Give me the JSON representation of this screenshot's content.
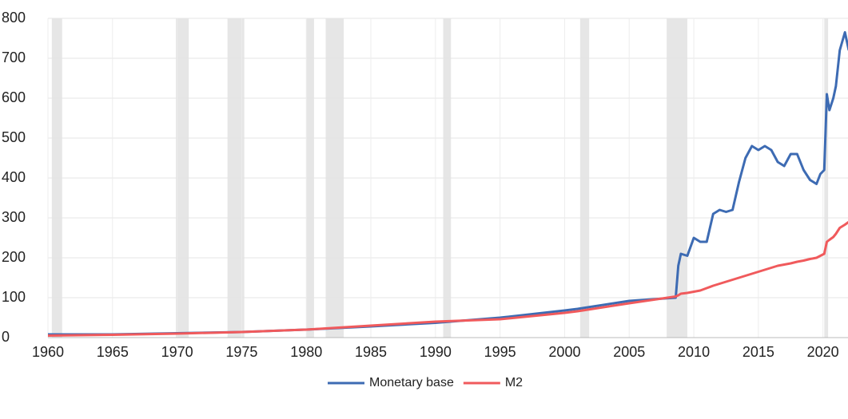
{
  "chart_data": {
    "type": "line",
    "x": [
      1960,
      1965,
      1970,
      1975,
      1980,
      1985,
      1990,
      1995,
      2000,
      2001,
      2005,
      2008.6,
      2008.8,
      2009,
      2009.5,
      2010,
      2010.5,
      2011,
      2011.5,
      2012,
      2012.5,
      2013,
      2013.5,
      2014,
      2014.5,
      2015,
      2015.5,
      2016,
      2016.5,
      2017,
      2017.5,
      2018,
      2018.5,
      2019,
      2019.5,
      2019.8,
      2020.1,
      2020.3,
      2020.5,
      2020.8,
      2021,
      2021.3,
      2021.7,
      2022
    ],
    "series": [
      {
        "name": "Monetary base",
        "color": "#3d6bb3",
        "values": [
          8,
          8,
          11,
          14,
          20,
          28,
          37,
          50,
          68,
          72,
          92,
          100,
          180,
          210,
          205,
          250,
          240,
          240,
          310,
          320,
          315,
          320,
          390,
          450,
          480,
          470,
          480,
          470,
          440,
          430,
          460,
          460,
          420,
          395,
          385,
          410,
          420,
          610,
          570,
          600,
          630,
          720,
          765,
          720
        ]
      },
      {
        "name": "M2",
        "color": "#f05a5c",
        "values": [
          5,
          7,
          10,
          14,
          20,
          30,
          40,
          46,
          62,
          66,
          86,
          103,
          106,
          110,
          112,
          115,
          118,
          124,
          130,
          135,
          140,
          145,
          150,
          155,
          160,
          165,
          170,
          175,
          180,
          183,
          186,
          190,
          193,
          197,
          200,
          205,
          210,
          240,
          245,
          252,
          260,
          275,
          283,
          290
        ]
      }
    ],
    "recessions": [
      [
        1960.3,
        1961.1
      ],
      [
        1969.9,
        1970.9
      ],
      [
        1973.9,
        1975.2
      ],
      [
        1980.0,
        1980.6
      ],
      [
        1981.5,
        1982.9
      ],
      [
        1990.6,
        1991.2
      ],
      [
        2001.2,
        2001.9
      ],
      [
        2007.9,
        2009.5
      ],
      [
        2020.1,
        2020.4
      ]
    ],
    "recession_color": "#e6e6e6",
    "xlim": [
      1960,
      2022
    ],
    "xticks": [
      1960,
      1965,
      1970,
      1975,
      1980,
      1985,
      1990,
      1995,
      2000,
      2005,
      2010,
      2015,
      2020
    ],
    "ylim": [
      0,
      800
    ],
    "yticks": [
      0,
      100,
      200,
      300,
      400,
      500,
      600,
      700,
      800
    ],
    "grid": true,
    "legend": "bottom"
  }
}
